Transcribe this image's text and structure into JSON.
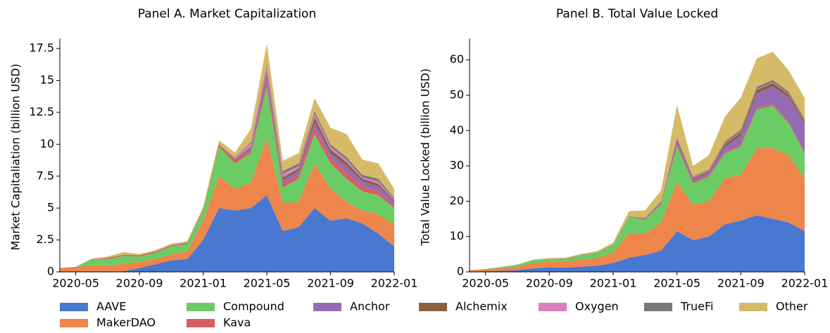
{
  "chart_data": [
    {
      "type": "stacked_area",
      "title": "Panel A. Market Capitalization",
      "y_label": "Market Capitaliation (billion USD)",
      "x": [
        "2020-04",
        "2020-05",
        "2020-06",
        "2020-07",
        "2020-08",
        "2020-09",
        "2020-10",
        "2020-11",
        "2020-12",
        "2021-01",
        "2021-02",
        "2021-03",
        "2021-04",
        "2021-05",
        "2021-06",
        "2021-07",
        "2021-08",
        "2021-09",
        "2021-10",
        "2021-11",
        "2021-12",
        "2022-01"
      ],
      "xlim": [
        "2020-04",
        "2022-01"
      ],
      "xticks": [
        "2020-05",
        "2020-09",
        "2021-01",
        "2021-05",
        "2021-09",
        "2022-01"
      ],
      "ylim": [
        0,
        18
      ],
      "yticks": [
        0,
        2.5,
        5,
        7.5,
        10,
        12.5,
        15,
        17.5
      ],
      "series": [
        {
          "name": "AAVE",
          "color": "#4878d0",
          "values": [
            0,
            0,
            0,
            0,
            0.05,
            0.3,
            0.6,
            0.9,
            1.0,
            2.5,
            5.0,
            4.8,
            5.0,
            6.0,
            3.2,
            3.5,
            5.0,
            4.0,
            4.2,
            3.8,
            3.0,
            2.0
          ]
        },
        {
          "name": "MakerDAO",
          "color": "#ee854a",
          "values": [
            0.3,
            0.4,
            0.5,
            0.5,
            0.6,
            0.5,
            0.4,
            0.5,
            0.6,
            1.5,
            2.5,
            1.7,
            2.0,
            4.5,
            2.2,
            2.0,
            3.5,
            2.5,
            1.3,
            1.0,
            1.5,
            1.7
          ]
        },
        {
          "name": "Compound",
          "color": "#6acc64",
          "values": [
            0,
            0,
            0.5,
            0.5,
            0.6,
            0.4,
            0.5,
            0.6,
            0.6,
            0.8,
            2.3,
            2.0,
            2.3,
            4.0,
            1.2,
            1.8,
            2.3,
            2.0,
            1.8,
            1.5,
            1.5,
            1.3
          ]
        },
        {
          "name": "Kava",
          "color": "#d65f5f",
          "values": [
            0,
            0,
            0,
            0.1,
            0.1,
            0.1,
            0.1,
            0.1,
            0.1,
            0.1,
            0.2,
            0.2,
            0.2,
            0.4,
            0.3,
            0.3,
            0.5,
            0.4,
            0.5,
            0.4,
            0.3,
            0.2
          ]
        },
        {
          "name": "Anchor",
          "color": "#956cb4",
          "values": [
            0,
            0,
            0,
            0,
            0,
            0,
            0,
            0,
            0,
            0,
            0,
            0,
            0.2,
            0.5,
            0.3,
            0.3,
            0.4,
            0.4,
            0.5,
            0.4,
            0.4,
            0.3
          ]
        },
        {
          "name": "Alchemix",
          "color": "#8c613c",
          "values": [
            0,
            0,
            0,
            0,
            0,
            0,
            0,
            0,
            0,
            0,
            0,
            0.1,
            0.1,
            0.3,
            0.2,
            0.2,
            0.4,
            0.3,
            0.3,
            0.2,
            0.2,
            0.1
          ]
        },
        {
          "name": "Oxygen",
          "color": "#dc7ec0",
          "values": [
            0,
            0,
            0,
            0,
            0,
            0,
            0,
            0,
            0,
            0,
            0,
            0.1,
            0.3,
            0.4,
            0.3,
            0.2,
            0.3,
            0.2,
            0.2,
            0.1,
            0.2,
            0.1
          ]
        },
        {
          "name": "TrueFi",
          "color": "#797979",
          "values": [
            0,
            0,
            0,
            0,
            0,
            0,
            0,
            0,
            0,
            0,
            0,
            0.05,
            0.1,
            0.2,
            0.2,
            0.2,
            0.2,
            0.2,
            0.2,
            0.2,
            0.2,
            0.1
          ]
        },
        {
          "name": "Other",
          "color": "#d5bb67",
          "values": [
            0,
            0,
            0.05,
            0.1,
            0.2,
            0.1,
            0.1,
            0.1,
            0.1,
            0.2,
            0.3,
            0.4,
            1.0,
            1.6,
            0.8,
            0.8,
            1.0,
            1.3,
            1.8,
            1.2,
            1.2,
            0.7
          ]
        }
      ]
    },
    {
      "type": "stacked_area",
      "title": "Panel B. Total Value Locked",
      "y_label": "Total Value Locked (billion USD)",
      "x": [
        "2020-04",
        "2020-05",
        "2020-06",
        "2020-07",
        "2020-08",
        "2020-09",
        "2020-10",
        "2020-11",
        "2020-12",
        "2021-01",
        "2021-02",
        "2021-03",
        "2021-04",
        "2021-05",
        "2021-06",
        "2021-07",
        "2021-08",
        "2021-09",
        "2021-10",
        "2021-11",
        "2021-12",
        "2022-01"
      ],
      "xlim": [
        "2020-04",
        "2022-01"
      ],
      "xticks": [
        "2020-05",
        "2020-09",
        "2021-01",
        "2021-05",
        "2021-09",
        "2022-01"
      ],
      "ylim": [
        0,
        65
      ],
      "yticks": [
        0,
        10,
        20,
        30,
        40,
        50,
        60
      ],
      "series": [
        {
          "name": "AAVE",
          "color": "#4878d0",
          "values": [
            0.1,
            0.2,
            0.3,
            0.5,
            1.0,
            1.3,
            1.2,
            1.5,
            1.7,
            2.5,
            4.0,
            4.8,
            6.0,
            11.5,
            9.0,
            10.0,
            13.5,
            14.5,
            16,
            15,
            14,
            11.5
          ]
        },
        {
          "name": "MakerDAO",
          "color": "#ee854a",
          "values": [
            0.4,
            0.5,
            0.8,
            1.0,
            1.5,
            1.5,
            1.7,
            2.0,
            2.2,
            3.0,
            7.0,
            6.0,
            8.0,
            14,
            10,
            10,
            13,
            13,
            19,
            20,
            19,
            15
          ]
        },
        {
          "name": "Compound",
          "color": "#6acc64",
          "values": [
            0,
            0.1,
            0.3,
            0.5,
            0.8,
            0.8,
            0.8,
            1.2,
            1.5,
            2.0,
            4.5,
            4.0,
            5.0,
            10,
            6.0,
            7.0,
            7.0,
            8.0,
            11,
            12,
            9,
            7
          ]
        },
        {
          "name": "Kava",
          "color": "#d65f5f",
          "values": [
            0,
            0,
            0,
            0,
            0,
            0.1,
            0.1,
            0.1,
            0.1,
            0.2,
            0.2,
            0.3,
            0.3,
            0.5,
            0.4,
            0.4,
            0.4,
            0.5,
            0.5,
            0.5,
            0.4,
            0.3
          ]
        },
        {
          "name": "Anchor",
          "color": "#956cb4",
          "values": [
            0,
            0,
            0,
            0,
            0,
            0,
            0,
            0,
            0,
            0,
            0,
            0.1,
            0.3,
            1.0,
            0.7,
            0.7,
            1.5,
            2.5,
            4,
            5,
            7,
            8
          ]
        },
        {
          "name": "Alchemix",
          "color": "#8c613c",
          "values": [
            0,
            0,
            0,
            0,
            0,
            0,
            0,
            0,
            0,
            0,
            0,
            0.1,
            0.2,
            0.6,
            0.4,
            0.4,
            0.8,
            1.0,
            1.0,
            1.0,
            0.8,
            0.8
          ]
        },
        {
          "name": "Oxygen",
          "color": "#dc7ec0",
          "values": [
            0,
            0,
            0,
            0,
            0,
            0,
            0,
            0,
            0,
            0,
            0,
            0.05,
            0.1,
            0.3,
            0.2,
            0.2,
            0.2,
            0.2,
            0.2,
            0.2,
            0.2,
            0.1
          ]
        },
        {
          "name": "TrueFi",
          "color": "#797979",
          "values": [
            0,
            0,
            0,
            0,
            0,
            0,
            0,
            0,
            0,
            0,
            0,
            0.05,
            0.1,
            0.3,
            0.3,
            0.3,
            0.5,
            0.6,
            0.7,
            0.6,
            0.6,
            0.5
          ]
        },
        {
          "name": "Other",
          "color": "#d5bb67",
          "values": [
            0,
            0,
            0.05,
            0.1,
            0.2,
            0.2,
            0.2,
            0.3,
            0.4,
            0.6,
            1.5,
            2.0,
            3.0,
            9,
            3,
            4,
            7,
            9,
            8,
            8,
            6,
            6
          ]
        }
      ]
    }
  ]
}
